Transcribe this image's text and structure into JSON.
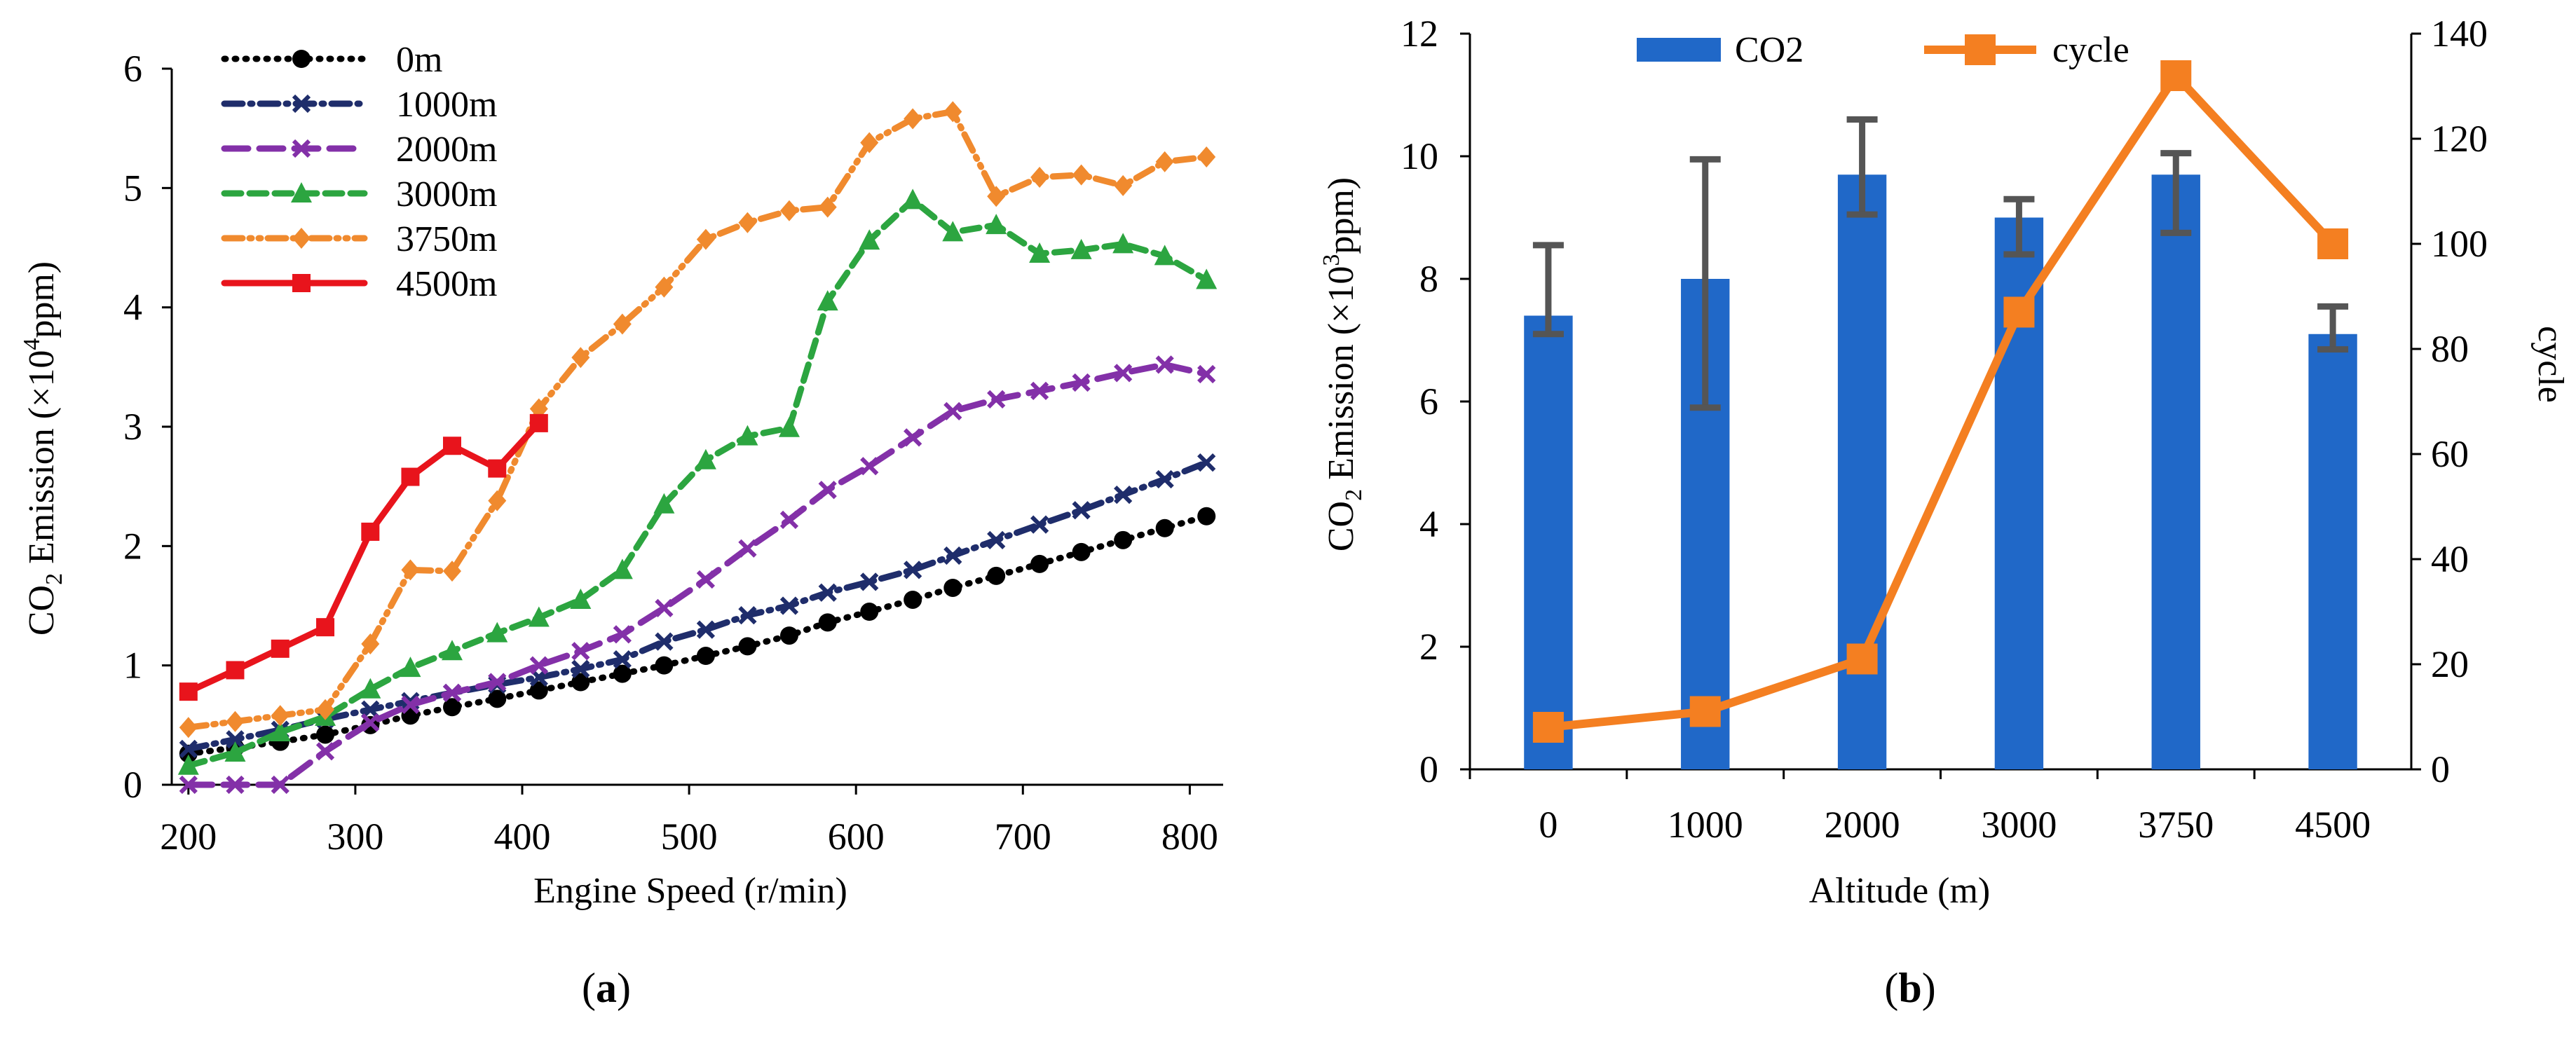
{
  "chart_data": [
    {
      "id": "a",
      "type": "line",
      "panel_label": "a",
      "xlabel": "Engine Speed (r/min)",
      "ylabel": {
        "prefix": "CO",
        "sub": "2",
        "middle": " Emission (×10",
        "sup": "4",
        "suffix": "ppm)"
      },
      "xlim": [
        190,
        820
      ],
      "ylim": [
        0,
        6
      ],
      "xticks": [
        "200",
        "300",
        "400",
        "500",
        "600",
        "700",
        "800"
      ],
      "yticks": [
        "0",
        "1",
        "2",
        "3",
        "4",
        "5",
        "6"
      ],
      "grid": false,
      "legend": "top-left",
      "series": [
        {
          "name": "0m",
          "color": "#000000",
          "dash": "dot",
          "marker": "circle",
          "x": [
            200,
            228,
            255,
            282,
            309,
            333,
            358,
            385,
            410,
            435,
            460,
            485,
            510,
            535,
            560,
            583,
            608,
            634,
            658,
            684,
            710,
            735,
            760,
            785,
            810
          ],
          "y": [
            0.26,
            0.31,
            0.36,
            0.42,
            0.5,
            0.58,
            0.65,
            0.72,
            0.79,
            0.86,
            0.93,
            1.0,
            1.08,
            1.16,
            1.25,
            1.36,
            1.45,
            1.55,
            1.65,
            1.75,
            1.85,
            1.95,
            2.05,
            2.15,
            2.25
          ]
        },
        {
          "name": "1000m",
          "color": "#1f2d6b",
          "dash": "dashdot",
          "marker": "x",
          "x": [
            200,
            228,
            255,
            282,
            309,
            333,
            358,
            385,
            410,
            435,
            460,
            485,
            510,
            535,
            560,
            583,
            608,
            634,
            658,
            684,
            710,
            735,
            760,
            785,
            810
          ],
          "y": [
            0.3,
            0.38,
            0.46,
            0.55,
            0.63,
            0.7,
            0.77,
            0.84,
            0.9,
            0.97,
            1.05,
            1.2,
            1.3,
            1.42,
            1.5,
            1.61,
            1.7,
            1.8,
            1.92,
            2.05,
            2.18,
            2.3,
            2.43,
            2.56,
            2.7
          ]
        },
        {
          "name": "2000m",
          "color": "#8330a8",
          "dash": "longdash",
          "marker": "x",
          "x": [
            200,
            228,
            255,
            282,
            309,
            333,
            358,
            385,
            410,
            435,
            460,
            485,
            510,
            535,
            560,
            583,
            608,
            634,
            658,
            684,
            710,
            735,
            760,
            785,
            810
          ],
          "y": [
            0.0,
            0.0,
            0.0,
            0.28,
            0.52,
            0.67,
            0.77,
            0.86,
            1.0,
            1.12,
            1.26,
            1.48,
            1.72,
            1.98,
            2.22,
            2.47,
            2.67,
            2.91,
            3.13,
            3.23,
            3.3,
            3.37,
            3.45,
            3.52,
            3.44
          ]
        },
        {
          "name": "3000m",
          "color": "#2ca540",
          "dash": "dash",
          "marker": "triangle",
          "x": [
            200,
            228,
            255,
            282,
            309,
            333,
            358,
            385,
            410,
            435,
            460,
            485,
            510,
            535,
            560,
            583,
            608,
            634,
            658,
            684,
            710,
            735,
            760,
            785,
            810
          ],
          "y": [
            0.16,
            0.27,
            0.44,
            0.57,
            0.8,
            0.98,
            1.12,
            1.27,
            1.4,
            1.55,
            1.8,
            2.35,
            2.72,
            2.92,
            2.99,
            4.05,
            4.56,
            4.9,
            4.63,
            4.69,
            4.45,
            4.48,
            4.53,
            4.43,
            4.23
          ]
        },
        {
          "name": "3750m",
          "color": "#f08a2e",
          "dash": "dashdotdot",
          "marker": "diamond",
          "x": [
            200,
            228,
            255,
            282,
            309,
            333,
            358,
            385,
            410,
            435,
            460,
            485,
            510,
            535,
            560,
            583,
            608,
            634,
            658,
            684,
            710,
            735,
            760,
            785,
            810
          ],
          "y": [
            0.48,
            0.53,
            0.58,
            0.63,
            1.18,
            1.8,
            1.79,
            2.38,
            3.15,
            3.58,
            3.86,
            4.17,
            4.57,
            4.71,
            4.81,
            4.84,
            5.38,
            5.58,
            5.64,
            4.93,
            5.09,
            5.11,
            5.02,
            5.22,
            5.26
          ]
        },
        {
          "name": "4500m",
          "color": "#e8141c",
          "dash": "solid",
          "marker": "square",
          "x": [
            200,
            228,
            255,
            282,
            309,
            333,
            358,
            385,
            410
          ],
          "y": [
            0.78,
            0.96,
            1.14,
            1.32,
            2.12,
            2.58,
            2.84,
            2.65,
            3.03
          ]
        }
      ]
    },
    {
      "id": "b",
      "type": "bar",
      "panel_label": "b",
      "xlabel": "Altitude (m)",
      "ylabel": {
        "prefix": "CO",
        "sub": "2",
        "middle": " Emission (×10",
        "sup": "3",
        "suffix": "ppm)"
      },
      "y2label": "cycle",
      "categories": [
        "0",
        "1000",
        "2000",
        "3000",
        "3750",
        "4500"
      ],
      "ylim": [
        0,
        12
      ],
      "y2lim": [
        0,
        140
      ],
      "yticks": [
        "0",
        "2",
        "4",
        "6",
        "8",
        "10",
        "12"
      ],
      "y2ticks": [
        "0",
        "20",
        "40",
        "60",
        "80",
        "100",
        "120",
        "140"
      ],
      "legend": "top",
      "series": [
        {
          "name": "CO2",
          "type": "bar",
          "axis": "left",
          "color": "#2068c8",
          "values": [
            7.4,
            8.0,
            9.7,
            9.0,
            9.7,
            7.1
          ],
          "err_low": [
            7.1,
            5.9,
            9.05,
            8.4,
            8.75,
            6.85
          ],
          "err_high": [
            8.55,
            9.95,
            10.6,
            9.3,
            10.05,
            7.55
          ]
        },
        {
          "name": "cycle",
          "type": "line",
          "axis": "right",
          "color": "#f47f21",
          "marker": "square",
          "values": [
            8,
            11,
            21,
            87,
            132,
            100
          ]
        }
      ]
    }
  ]
}
